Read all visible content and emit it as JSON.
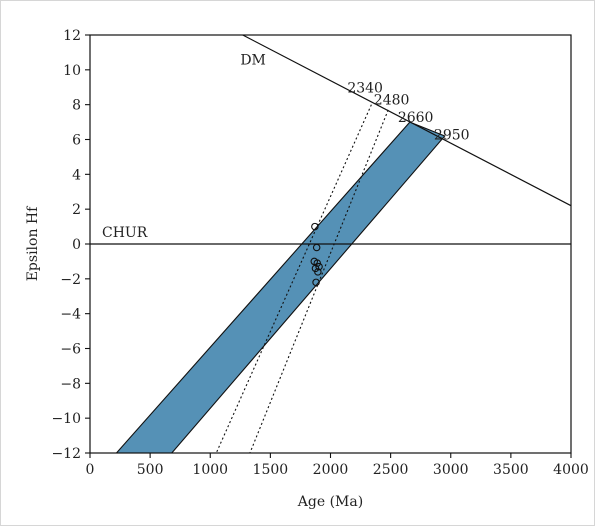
{
  "chart_data": {
    "type": "line",
    "xlabel": "Age (Ma)",
    "ylabel": "Epsilon Hf",
    "xlim": [
      0,
      4000
    ],
    "ylim": [
      -12,
      12
    ],
    "x_ticks": [
      0,
      500,
      1000,
      1500,
      2000,
      2500,
      3000,
      3500,
      4000
    ],
    "y_ticks": [
      12,
      10,
      8,
      6,
      4,
      2,
      0,
      -2,
      -4,
      -6,
      -8,
      -10,
      -12
    ],
    "grid": false,
    "reference_lines": [
      {
        "label": "DM",
        "points": [
          [
            1270,
            12.0
          ],
          [
            4000,
            2.2
          ]
        ]
      },
      {
        "label": "CHUR",
        "points": [
          [
            0,
            0
          ],
          [
            4000,
            0
          ]
        ]
      }
    ],
    "evolution_band": {
      "color": "#5591b6",
      "upper_edge": [
        [
          2660,
          7.0
        ],
        [
          220,
          -12.0
        ]
      ],
      "lower_edge": [
        [
          2950,
          6.2
        ],
        [
          680,
          -12.0
        ]
      ]
    },
    "model_age_lines": [
      {
        "label": "2340",
        "points": [
          [
            2340,
            8.0
          ],
          [
            1050,
            -12.0
          ]
        ]
      },
      {
        "label": "2480",
        "points": [
          [
            2480,
            7.7
          ],
          [
            1330,
            -12.0
          ]
        ]
      }
    ],
    "annotations": [
      {
        "text": "DM",
        "x": 1250,
        "y": 10.3
      },
      {
        "text": "CHUR",
        "x": 100,
        "y": 0.4
      },
      {
        "text": "2340",
        "x": 2140,
        "y": 8.7
      },
      {
        "text": "2480",
        "x": 2360,
        "y": 8.0
      },
      {
        "text": "2660",
        "x": 2560,
        "y": 7.0
      },
      {
        "text": "2950",
        "x": 2860,
        "y": 6.0
      }
    ],
    "scatter_points": [
      [
        1870,
        1.0
      ],
      [
        1885,
        -0.2
      ],
      [
        1865,
        -1.0
      ],
      [
        1890,
        -1.1
      ],
      [
        1905,
        -1.3
      ],
      [
        1875,
        -1.4
      ],
      [
        1895,
        -1.6
      ],
      [
        1880,
        -2.2
      ]
    ],
    "marker_style": "open-circle"
  }
}
